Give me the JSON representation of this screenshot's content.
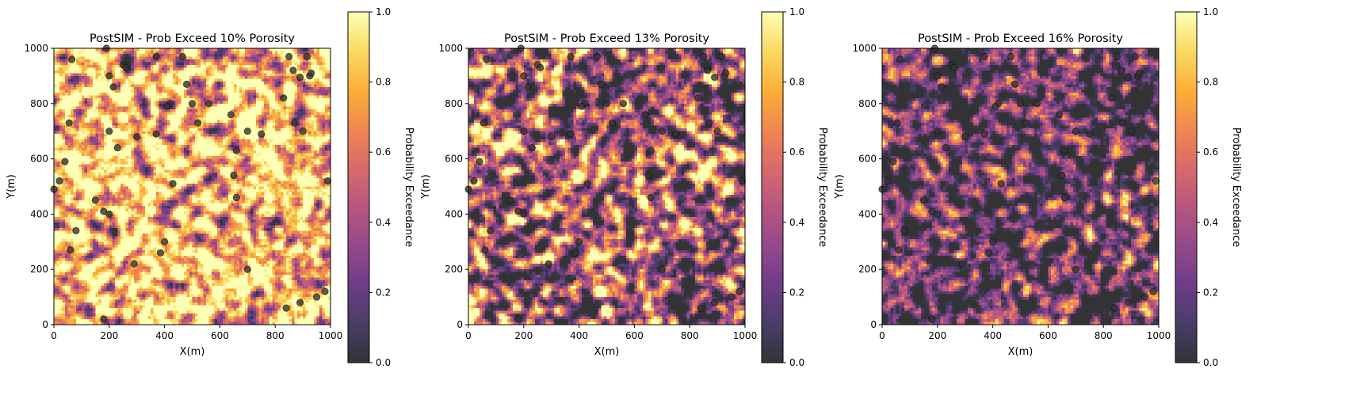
{
  "colormap": "inferno",
  "colormap_stops": [
    "#000004",
    "#1b0c41",
    "#4a0c6b",
    "#781c6d",
    "#a52c60",
    "#cf4446",
    "#ed6925",
    "#fb9b06",
    "#f7d13d",
    "#fcffa4"
  ],
  "heatmap_alpha": 0.8,
  "chart_data": [
    {
      "type": "heatmap",
      "title": "PostSIM - Prob Exceed 10% Porosity",
      "xlabel": "X(m)",
      "ylabel": "Y(m)",
      "xlim": [
        0,
        1000
      ],
      "ylim": [
        0,
        1000
      ],
      "xticks": [
        "0",
        "200",
        "400",
        "600",
        "800",
        "1000"
      ],
      "yticks": [
        "0",
        "200",
        "400",
        "600",
        "800",
        "1000"
      ],
      "colorbar_label": "Probability Exceedance",
      "colorbar_range": [
        0,
        1
      ],
      "colorbar_ticks": [
        "0.0",
        "0.2",
        "0.4",
        "0.6",
        "0.8",
        "1.0"
      ],
      "grid_cells": 100,
      "mean_probability": 0.82,
      "variability": 0.3,
      "seed": 11
    },
    {
      "type": "heatmap",
      "title": "PostSIM - Prob Exceed 13% Porosity",
      "xlabel": "X(m)",
      "ylabel": "Y(m)",
      "xlim": [
        0,
        1000
      ],
      "ylim": [
        0,
        1000
      ],
      "xticks": [
        "0",
        "200",
        "400",
        "600",
        "800",
        "1000"
      ],
      "yticks": [
        "0",
        "200",
        "400",
        "600",
        "800",
        "1000"
      ],
      "colorbar_label": "Probability Exceedance",
      "colorbar_range": [
        0,
        1
      ],
      "colorbar_ticks": [
        "0.0",
        "0.2",
        "0.4",
        "0.6",
        "0.8",
        "1.0"
      ],
      "grid_cells": 100,
      "mean_probability": 0.42,
      "variability": 0.38,
      "seed": 23
    },
    {
      "type": "heatmap",
      "title": "PostSIM - Prob Exceed 16% Porosity",
      "xlabel": "X(m)",
      "ylabel": "Y(m)",
      "xlim": [
        0,
        1000
      ],
      "ylim": [
        0,
        1000
      ],
      "xticks": [
        "0",
        "200",
        "400",
        "600",
        "800",
        "1000"
      ],
      "yticks": [
        "0",
        "200",
        "400",
        "600",
        "800",
        "1000"
      ],
      "colorbar_label": "Probability Exceedance",
      "colorbar_range": [
        0,
        1
      ],
      "colorbar_ticks": [
        "0.0",
        "0.2",
        "0.4",
        "0.6",
        "0.8",
        "1.0"
      ],
      "grid_cells": 100,
      "mean_probability": 0.17,
      "variability": 0.3,
      "seed": 37
    }
  ],
  "well_data": {
    "marker_color": "#333333",
    "marker_alpha": 0.8,
    "points": [
      [
        65,
        960
      ],
      [
        190,
        1000
      ],
      [
        200,
        900
      ],
      [
        215,
        860
      ],
      [
        250,
        940
      ],
      [
        260,
        930
      ],
      [
        370,
        970
      ],
      [
        420,
        800
      ],
      [
        465,
        970
      ],
      [
        480,
        870
      ],
      [
        500,
        800
      ],
      [
        520,
        730
      ],
      [
        560,
        800
      ],
      [
        640,
        760
      ],
      [
        660,
        630
      ],
      [
        700,
        700
      ],
      [
        750,
        690
      ],
      [
        830,
        820
      ],
      [
        850,
        970
      ],
      [
        865,
        920
      ],
      [
        870,
        730
      ],
      [
        890,
        895
      ],
      [
        900,
        700
      ],
      [
        915,
        970
      ],
      [
        925,
        900
      ],
      [
        930,
        910
      ],
      [
        55,
        730
      ],
      [
        200,
        700
      ],
      [
        230,
        640
      ],
      [
        300,
        680
      ],
      [
        370,
        690
      ],
      [
        410,
        790
      ],
      [
        0,
        490
      ],
      [
        20,
        520
      ],
      [
        40,
        590
      ],
      [
        150,
        450
      ],
      [
        180,
        410
      ],
      [
        200,
        400
      ],
      [
        290,
        220
      ],
      [
        385,
        260
      ],
      [
        400,
        300
      ],
      [
        430,
        510
      ],
      [
        650,
        540
      ],
      [
        660,
        460
      ],
      [
        700,
        200
      ],
      [
        60,
        270
      ],
      [
        80,
        340
      ],
      [
        180,
        20
      ],
      [
        840,
        60
      ],
      [
        890,
        80
      ],
      [
        950,
        100
      ],
      [
        980,
        120
      ],
      [
        990,
        520
      ]
    ]
  }
}
